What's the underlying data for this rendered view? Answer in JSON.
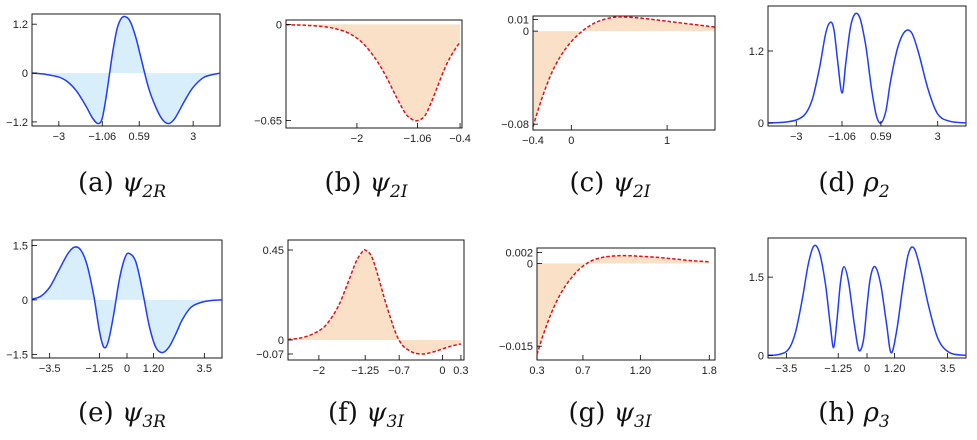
{
  "colors": {
    "real_line": "#1f3cff",
    "real_fill": "#d8eefb",
    "imag_line": "#e0101a",
    "imag_fill": "#fbe0c8",
    "axis": "#000000"
  },
  "chart_data": [
    {
      "id": "a",
      "type": "area",
      "style": "real",
      "caption": {
        "letter": "(a)",
        "symbol": "ψ",
        "sub": "2R"
      },
      "xlim": [
        -4.2,
        4.2
      ],
      "ylim": [
        -1.3,
        1.45
      ],
      "xticks": [
        -3,
        -1.06,
        0.59,
        3
      ],
      "xtick_labels": [
        "−3",
        "−1.06",
        "0.59",
        "3"
      ],
      "yticks": [
        -1.2,
        0,
        1.2
      ],
      "ytick_labels": [
        "−1.2",
        "0",
        "1.2"
      ],
      "series": [
        {
          "x": [
            -4.2,
            -3.6,
            -3,
            -2.6,
            -2.2,
            -1.8,
            -1.5,
            -1.25,
            -1.06,
            -0.85,
            -0.6,
            -0.4,
            -0.2,
            0,
            0.2,
            0.45,
            0.7,
            1,
            1.3,
            1.6,
            1.9,
            2.2,
            2.6,
            3,
            3.5,
            4.2
          ],
          "values": [
            0,
            -0.03,
            -0.1,
            -0.22,
            -0.45,
            -0.8,
            -1.1,
            -1.24,
            -1.1,
            -0.45,
            0.5,
            1.08,
            1.35,
            1.38,
            1.25,
            0.85,
            0.3,
            -0.35,
            -0.8,
            -1.12,
            -1.24,
            -1.1,
            -0.7,
            -0.35,
            -0.1,
            0
          ]
        }
      ]
    },
    {
      "id": "b",
      "type": "area",
      "style": "imag",
      "caption": {
        "letter": "(b)",
        "symbol": "ψ",
        "sub": "2I"
      },
      "xlim": [
        -3.1,
        -0.37
      ],
      "ylim": [
        -0.7,
        0.03
      ],
      "xticks": [
        -2,
        -1.06,
        -0.4
      ],
      "xtick_labels": [
        "−2",
        "−1.06",
        "−0.4"
      ],
      "yticks": [
        0,
        -0.65
      ],
      "ytick_labels": [
        "0",
        "−0.65"
      ],
      "series": [
        {
          "x": [
            -3.1,
            -2.8,
            -2.5,
            -2.3,
            -2.1,
            -1.9,
            -1.7,
            -1.55,
            -1.4,
            -1.25,
            -1.15,
            -1.06,
            -0.95,
            -0.85,
            -0.75,
            -0.65,
            -0.55,
            -0.45,
            -0.4
          ],
          "values": [
            -0.002,
            -0.006,
            -0.016,
            -0.033,
            -0.065,
            -0.13,
            -0.24,
            -0.35,
            -0.48,
            -0.6,
            -0.64,
            -0.65,
            -0.62,
            -0.53,
            -0.42,
            -0.31,
            -0.22,
            -0.15,
            -0.12
          ]
        }
      ]
    },
    {
      "id": "c",
      "type": "area",
      "style": "imag",
      "caption": {
        "letter": "(c)",
        "symbol": "ψ",
        "sub": "2I"
      },
      "xlim": [
        -0.4,
        1.5
      ],
      "ylim": [
        -0.085,
        0.013
      ],
      "xticks": [
        -0.4,
        0,
        1
      ],
      "xtick_labels": [
        "−0.4",
        "0",
        "1"
      ],
      "yticks": [
        0.01,
        0,
        -0.08
      ],
      "ytick_labels": [
        "0.01",
        "0",
        "−0.08"
      ],
      "series": [
        {
          "x": [
            -0.4,
            -0.3,
            -0.2,
            -0.1,
            0,
            0.1,
            0.2,
            0.3,
            0.45,
            0.6,
            0.8,
            1,
            1.2,
            1.4,
            1.5
          ],
          "values": [
            -0.082,
            -0.056,
            -0.035,
            -0.02,
            -0.009,
            -0.001,
            0.005,
            0.009,
            0.012,
            0.012,
            0.0105,
            0.0085,
            0.0065,
            0.0045,
            0.0035
          ]
        }
      ]
    },
    {
      "id": "d",
      "type": "line",
      "style": "real",
      "caption": {
        "letter": "(d)",
        "symbol": "ρ",
        "sub": "2"
      },
      "xlim": [
        -4.2,
        4.2
      ],
      "ylim": [
        -0.05,
        1.95
      ],
      "xticks": [
        -3,
        -1.06,
        0.59,
        3
      ],
      "xtick_labels": [
        "−3",
        "−1.06",
        "0.59",
        "3"
      ],
      "yticks": [
        0,
        1.2
      ],
      "ytick_labels": [
        "0",
        "1.2"
      ],
      "series": [
        {
          "x": [
            -4.2,
            -3.6,
            -3,
            -2.6,
            -2.3,
            -2,
            -1.75,
            -1.55,
            -1.4,
            -1.25,
            -1.06,
            -0.9,
            -0.7,
            -0.5,
            -0.3,
            -0.1,
            0,
            0.2,
            0.4,
            0.59,
            0.8,
            1,
            1.3,
            1.6,
            1.9,
            2.2,
            2.6,
            3,
            3.5,
            4.2
          ],
          "values": [
            0.002,
            0.01,
            0.05,
            0.16,
            0.42,
            0.95,
            1.5,
            1.68,
            1.55,
            1.05,
            0.5,
            1.0,
            1.6,
            1.82,
            1.75,
            1.4,
            1.15,
            0.55,
            0.12,
            0.0,
            0.2,
            0.7,
            1.25,
            1.52,
            1.5,
            1.15,
            0.55,
            0.15,
            0.03,
            0.002
          ]
        }
      ]
    },
    {
      "id": "e",
      "type": "area",
      "style": "real",
      "caption": {
        "letter": "(e)",
        "symbol": "ψ",
        "sub": "3R"
      },
      "xlim": [
        -4.3,
        4.3
      ],
      "ylim": [
        -1.6,
        1.65
      ],
      "xticks": [
        -3.5,
        -1.25,
        0,
        1.2,
        3.5
      ],
      "xtick_labels": [
        "−3.5",
        "−1.25",
        "0",
        "1.20",
        "3.5"
      ],
      "yticks": [
        1.5,
        0,
        -1.5
      ],
      "ytick_labels": [
        "1.5",
        "0",
        "−1.5"
      ],
      "series": [
        {
          "x": [
            -4.3,
            -3.9,
            -3.5,
            -3.1,
            -2.7,
            -2.4,
            -2.1,
            -1.8,
            -1.5,
            -1.25,
            -1.05,
            -0.85,
            -0.6,
            -0.35,
            -0.1,
            0.1,
            0.4,
            0.7,
            1,
            1.3,
            1.6,
            1.9,
            2.2,
            2.5,
            2.9,
            3.4,
            3.9,
            4.3
          ],
          "values": [
            0.02,
            0.1,
            0.35,
            0.8,
            1.25,
            1.45,
            1.38,
            0.95,
            0.1,
            -0.85,
            -1.3,
            -1.15,
            -0.4,
            0.55,
            1.15,
            1.28,
            1.05,
            0.25,
            -0.7,
            -1.3,
            -1.45,
            -1.3,
            -0.95,
            -0.55,
            -0.2,
            -0.06,
            -0.01,
            0
          ]
        }
      ]
    },
    {
      "id": "f",
      "type": "area",
      "style": "imag",
      "caption": {
        "letter": "(f)",
        "symbol": "ψ",
        "sub": "3I"
      },
      "xlim": [
        -2.5,
        0.35
      ],
      "ylim": [
        -0.1,
        0.5
      ],
      "xticks": [
        -2,
        -1.25,
        -0.7,
        0,
        0.3
      ],
      "xtick_labels": [
        "−2",
        "−1.25",
        "−0.7",
        "0",
        "0.3"
      ],
      "yticks": [
        0.45,
        0,
        -0.07
      ],
      "ytick_labels": [
        "0.45",
        "0",
        "−0.07"
      ],
      "series": [
        {
          "x": [
            -2.5,
            -2.3,
            -2.1,
            -1.9,
            -1.7,
            -1.55,
            -1.4,
            -1.3,
            -1.25,
            -1.15,
            -1.05,
            -0.95,
            -0.85,
            -0.75,
            -0.65,
            -0.55,
            -0.45,
            -0.3,
            -0.15,
            0,
            0.15,
            0.3
          ],
          "values": [
            0.003,
            0.01,
            0.03,
            0.07,
            0.16,
            0.27,
            0.39,
            0.44,
            0.45,
            0.42,
            0.33,
            0.22,
            0.12,
            0.03,
            -0.025,
            -0.05,
            -0.065,
            -0.07,
            -0.06,
            -0.045,
            -0.03,
            -0.02
          ]
        }
      ]
    },
    {
      "id": "g",
      "type": "area",
      "style": "imag",
      "caption": {
        "letter": "(g)",
        "symbol": "ψ",
        "sub": "3I"
      },
      "xlim": [
        0.3,
        1.85
      ],
      "ylim": [
        -0.0175,
        0.0028
      ],
      "xticks": [
        0.3,
        0.7,
        1.2,
        1.8
      ],
      "xtick_labels": [
        "0.3",
        "0.7",
        "1.20",
        "1.8"
      ],
      "yticks": [
        0.002,
        0,
        -0.015
      ],
      "ytick_labels": [
        "0.002",
        "0",
        "−0.015"
      ],
      "series": [
        {
          "x": [
            0.3,
            0.35,
            0.4,
            0.45,
            0.5,
            0.55,
            0.6,
            0.65,
            0.7,
            0.75,
            0.8,
            0.85,
            0.9,
            1,
            1.1,
            1.2,
            1.35,
            1.5,
            1.65,
            1.8
          ],
          "values": [
            -0.0165,
            -0.0132,
            -0.0103,
            -0.0078,
            -0.0057,
            -0.004,
            -0.0026,
            -0.0014,
            -0.0005,
            0.0002,
            0.0007,
            0.001,
            0.0012,
            0.0014,
            0.0014,
            0.0013,
            0.0011,
            0.0008,
            0.0005,
            0.0003
          ]
        }
      ]
    },
    {
      "id": "h",
      "type": "line",
      "style": "real",
      "caption": {
        "letter": "(h)",
        "symbol": "ρ",
        "sub": "3"
      },
      "xlim": [
        -4.3,
        4.3
      ],
      "ylim": [
        -0.05,
        2.25
      ],
      "xticks": [
        -3.5,
        -1.25,
        0,
        1.2,
        3.5
      ],
      "xtick_labels": [
        "−3.5",
        "−1.25",
        "0",
        "1.20",
        "3.5"
      ],
      "yticks": [
        0,
        1.5
      ],
      "ytick_labels": [
        "0",
        "1.5"
      ],
      "series": [
        {
          "x": [
            -4.3,
            -3.8,
            -3.4,
            -3.1,
            -2.8,
            -2.55,
            -2.3,
            -2.05,
            -1.8,
            -1.6,
            -1.45,
            -1.3,
            -1.15,
            -1.0,
            -0.8,
            -0.55,
            -0.35,
            -0.15,
            0,
            0.15,
            0.35,
            0.6,
            0.85,
            1.05,
            1.3,
            1.55,
            1.8,
            2.05,
            2.35,
            2.7,
            3.1,
            3.6,
            4.3
          ],
          "values": [
            0.001,
            0.02,
            0.12,
            0.45,
            1.1,
            1.75,
            2.1,
            1.95,
            1.35,
            0.6,
            0.15,
            0.7,
            1.4,
            1.7,
            1.4,
            0.6,
            0.1,
            0.3,
            0.95,
            1.5,
            1.7,
            1.35,
            0.6,
            0.05,
            0.5,
            1.3,
            1.95,
            2.05,
            1.6,
            0.9,
            0.3,
            0.05,
            0.001
          ]
        }
      ]
    }
  ]
}
